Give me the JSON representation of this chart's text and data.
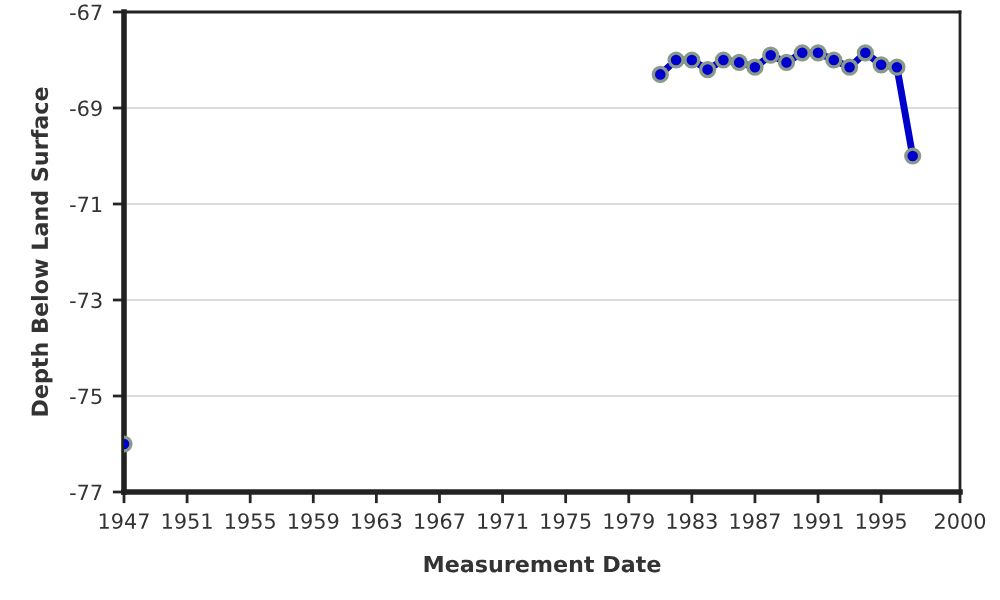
{
  "chart_data": {
    "type": "line",
    "xlabel": "Measurement Date",
    "ylabel": "Depth Below Land Surface",
    "xlim": [
      1947,
      2000
    ],
    "xticks": [
      1947,
      1951,
      1955,
      1959,
      1963,
      1967,
      1971,
      1975,
      1979,
      1983,
      1987,
      1991,
      1995,
      {
        "value": 2000,
        "label": "2000"
      }
    ],
    "ylim": [
      -77,
      -67
    ],
    "yticks": [
      -77,
      -75,
      -73,
      -71,
      -69,
      -67
    ],
    "grid": "y",
    "marker": "circle",
    "line_style": "solid",
    "series": [
      {
        "color": "#0000cc",
        "x": [
          1947,
          1964,
          1981,
          1982,
          1983,
          1984,
          1985,
          1986,
          1987,
          1988,
          1989,
          1990,
          1991,
          1992,
          1993,
          1994,
          1995,
          1996,
          1997
        ],
        "values": [
          -76.0,
          null,
          -68.3,
          -68.0,
          -68.0,
          -68.2,
          -68.0,
          -68.05,
          -68.15,
          -67.9,
          -68.05,
          -67.85,
          -67.85,
          -68.0,
          -68.15,
          -67.85,
          -68.1,
          -68.15,
          -70.0
        ]
      }
    ]
  }
}
